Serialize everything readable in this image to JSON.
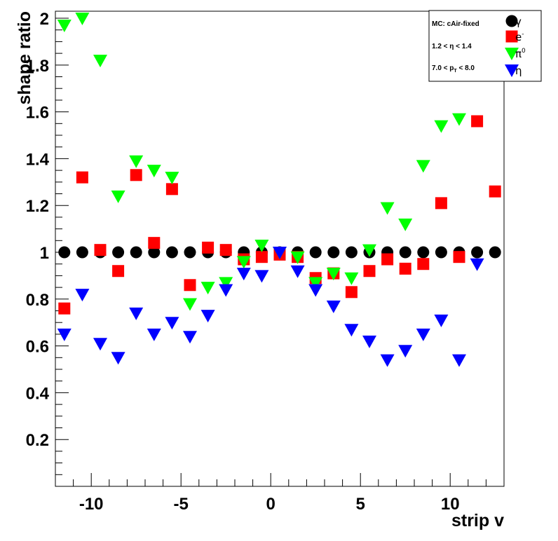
{
  "chart_data": {
    "type": "scatter",
    "title": "",
    "xlabel": "strip v",
    "ylabel": "shape ratio",
    "xlim": [
      -12.0,
      13.0
    ],
    "ylim": [
      0.0,
      2.03
    ],
    "xticks": [
      -10,
      -5,
      0,
      5,
      10
    ],
    "yticks": [
      0.2,
      0.4,
      0.6,
      0.8,
      1,
      1.2,
      1.4,
      1.6,
      1.8,
      2
    ],
    "xtick_labels": [
      "-10",
      "-5",
      "0",
      "5",
      "10"
    ],
    "ytick_labels": [
      "0.2",
      "0.4",
      "0.6",
      "0.8",
      "1",
      "1.2",
      "1.4",
      "1.6",
      "1.8",
      "2"
    ],
    "grid": false,
    "legend": {
      "position": "top-right",
      "info_lines": [
        "MC: cAir-fixed",
        "1.2 < η < 1.4",
        "7.0 < p",
        "T",
        " < 8.0"
      ]
    },
    "series": [
      {
        "name": "γ",
        "marker": "circle",
        "color": "#000000",
        "x": [
          -11.5,
          -10.5,
          -9.5,
          -8.5,
          -7.5,
          -6.5,
          -5.5,
          -4.5,
          -3.5,
          -2.5,
          -1.5,
          -0.5,
          0.5,
          1.5,
          2.5,
          3.5,
          4.5,
          5.5,
          6.5,
          7.5,
          8.5,
          9.5,
          10.5,
          11.5,
          12.5
        ],
        "y": [
          1,
          1,
          1,
          1,
          1,
          1,
          1,
          1,
          1,
          1,
          1,
          1,
          1,
          1,
          1,
          1,
          1,
          1,
          1,
          1,
          1,
          1,
          1,
          1,
          1
        ]
      },
      {
        "name": "e",
        "name_sup": "-",
        "marker": "square",
        "color": "#ff0000",
        "x": [
          -11.5,
          -10.5,
          -9.5,
          -8.5,
          -7.5,
          -6.5,
          -5.5,
          -4.5,
          -3.5,
          -2.5,
          -1.5,
          -0.5,
          0.5,
          1.5,
          2.5,
          3.5,
          4.5,
          5.5,
          6.5,
          7.5,
          8.5,
          9.5,
          10.5,
          11.5,
          12.5
        ],
        "y": [
          0.76,
          1.32,
          1.01,
          0.92,
          1.33,
          1.04,
          1.27,
          0.86,
          1.02,
          1.01,
          0.97,
          0.98,
          0.99,
          0.98,
          0.89,
          0.91,
          0.83,
          0.92,
          0.97,
          0.93,
          0.95,
          1.21,
          0.98,
          1.56,
          1.26
        ]
      },
      {
        "name": "π",
        "name_sup": "0",
        "marker": "triangle-down",
        "color": "#00ff00",
        "x": [
          -11.5,
          -10.5,
          -9.5,
          -8.5,
          -7.5,
          -6.5,
          -5.5,
          -4.5,
          -3.5,
          -2.5,
          -1.5,
          -0.5,
          0.5,
          1.5,
          2.5,
          3.5,
          4.5,
          5.5,
          6.5,
          7.5,
          8.5,
          9.5,
          10.5
        ],
        "y": [
          1.97,
          2.0,
          1.82,
          1.24,
          1.39,
          1.35,
          1.32,
          0.78,
          0.85,
          0.87,
          0.96,
          1.03,
          1.0,
          0.98,
          0.87,
          0.91,
          0.89,
          1.01,
          1.19,
          1.12,
          1.37,
          1.54,
          1.57
        ]
      },
      {
        "name": "η",
        "marker": "triangle-down",
        "color": "#0000ff",
        "x": [
          -11.5,
          -10.5,
          -9.5,
          -8.5,
          -7.5,
          -6.5,
          -5.5,
          -4.5,
          -3.5,
          -2.5,
          -1.5,
          -0.5,
          0.5,
          1.5,
          2.5,
          3.5,
          4.5,
          5.5,
          6.5,
          7.5,
          8.5,
          9.5,
          10.5,
          11.5
        ],
        "y": [
          0.65,
          0.82,
          0.61,
          0.55,
          0.74,
          0.65,
          0.7,
          0.64,
          0.73,
          0.84,
          0.91,
          0.9,
          1.0,
          0.92,
          0.84,
          0.77,
          0.67,
          0.62,
          0.54,
          0.58,
          0.65,
          0.71,
          0.54,
          0.95
        ]
      }
    ]
  }
}
